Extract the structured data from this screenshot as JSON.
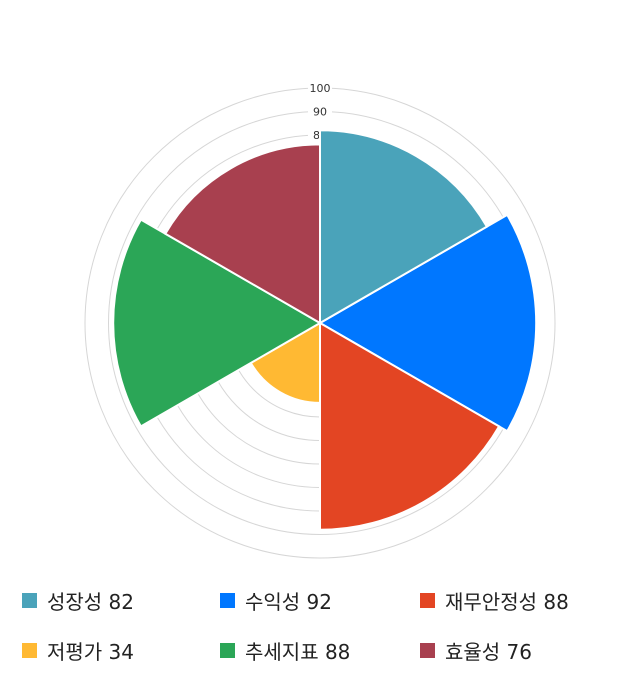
{
  "chart_data": {
    "type": "polar-area",
    "categories": [
      "성장성",
      "수익성",
      "재무안정성",
      "저평가",
      "추세지표",
      "효율성"
    ],
    "values": [
      82,
      92,
      88,
      34,
      88,
      76
    ],
    "colors": [
      "#4aa3ba",
      "#0077ff",
      "#e34523",
      "#ffb933",
      "#2ba657",
      "#a8404f"
    ],
    "rlim": [
      0,
      100
    ],
    "ring_step": 10,
    "tick_labels": [
      "100",
      "90",
      "80"
    ],
    "grid": true,
    "legend_position": "bottom",
    "legend": [
      "성장성 82",
      "수익성 92",
      "재무안정성 88",
      "저평가 34",
      "추세지표 88",
      "효율성 76"
    ]
  }
}
